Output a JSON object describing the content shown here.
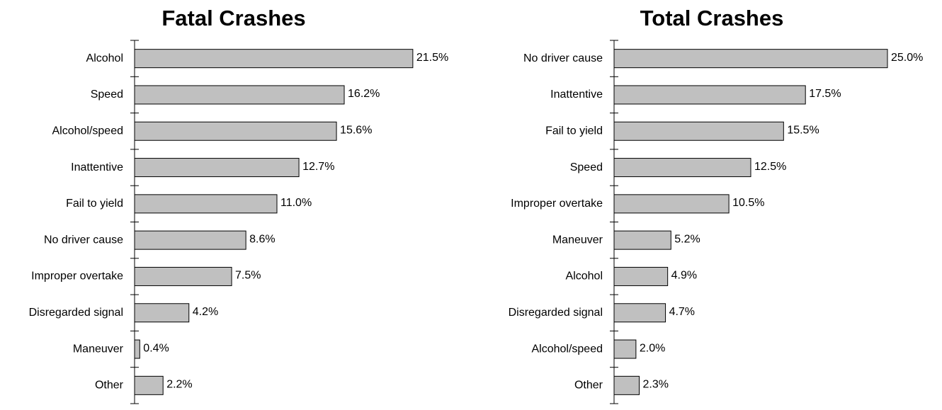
{
  "chart_data": [
    {
      "type": "bar",
      "orientation": "horizontal",
      "title": "Fatal Crashes",
      "categories": [
        "Alcohol",
        "Speed",
        "Alcohol/speed",
        "Inattentive",
        "Fail to yield",
        "No driver cause",
        "Improper overtake",
        "Disregarded signal",
        "Maneuver",
        "Other"
      ],
      "values": [
        21.5,
        16.2,
        15.6,
        12.7,
        11.0,
        8.6,
        7.5,
        4.2,
        0.4,
        2.2
      ],
      "value_labels": [
        "21.5%",
        "16.2%",
        "15.6%",
        "12.7%",
        "11.0%",
        "8.6%",
        "7.5%",
        "4.2%",
        "0.4%",
        "2.2%"
      ],
      "color": "#c0c0c0",
      "xlim": [
        0,
        22
      ]
    },
    {
      "type": "bar",
      "orientation": "horizontal",
      "title": "Total Crashes",
      "categories": [
        "No driver cause",
        "Inattentive",
        "Fail to yield",
        "Speed",
        "Improper overtake",
        "Maneuver",
        "Alcohol",
        "Disregarded signal",
        "Alcohol/speed",
        "Other"
      ],
      "values": [
        25.0,
        17.5,
        15.5,
        12.5,
        10.5,
        5.2,
        4.9,
        4.7,
        2.0,
        2.3
      ],
      "value_labels": [
        "25.0%",
        "17.5%",
        "15.5%",
        "12.5%",
        "10.5%",
        "5.2%",
        "4.9%",
        "4.7%",
        "2.0%",
        "2.3%"
      ],
      "color": "#c0c0c0",
      "xlim": [
        0,
        25
      ]
    }
  ]
}
